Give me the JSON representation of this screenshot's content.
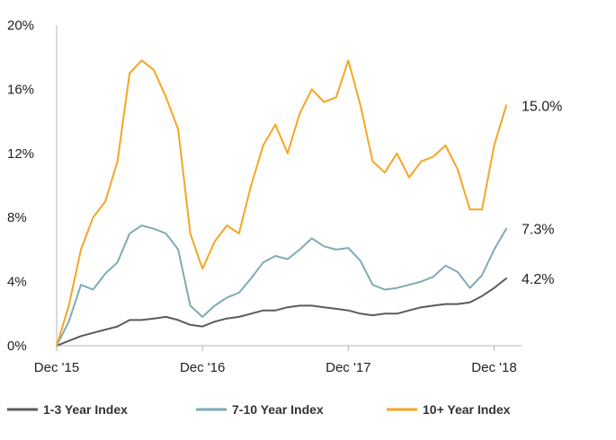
{
  "chart_data": {
    "type": "line",
    "title": "",
    "xlabel": "",
    "ylabel": "",
    "x_ticks": [
      "Dec '15",
      "Dec '16",
      "Dec '17",
      "Dec '18"
    ],
    "y_ticks": [
      "0%",
      "4%",
      "8%",
      "12%",
      "16%",
      "20%"
    ],
    "ylim": [
      0,
      20
    ],
    "x_range": [
      "2015-12",
      "2019-01"
    ],
    "grid": false,
    "legend_position": "bottom",
    "series": [
      {
        "name": "1-3 Year Index",
        "color": "#5a5b5e",
        "end_label": "4.2%",
        "points": [
          [
            "2015-12",
            0.0
          ],
          [
            "2016-01",
            0.3
          ],
          [
            "2016-02",
            0.6
          ],
          [
            "2016-03",
            0.8
          ],
          [
            "2016-04",
            1.0
          ],
          [
            "2016-05",
            1.2
          ],
          [
            "2016-06",
            1.6
          ],
          [
            "2016-07",
            1.6
          ],
          [
            "2016-08",
            1.7
          ],
          [
            "2016-09",
            1.8
          ],
          [
            "2016-10",
            1.6
          ],
          [
            "2016-11",
            1.3
          ],
          [
            "2016-12",
            1.2
          ],
          [
            "2017-01",
            1.5
          ],
          [
            "2017-02",
            1.7
          ],
          [
            "2017-03",
            1.8
          ],
          [
            "2017-04",
            2.0
          ],
          [
            "2017-05",
            2.2
          ],
          [
            "2017-06",
            2.2
          ],
          [
            "2017-07",
            2.4
          ],
          [
            "2017-08",
            2.5
          ],
          [
            "2017-09",
            2.5
          ],
          [
            "2017-10",
            2.4
          ],
          [
            "2017-11",
            2.3
          ],
          [
            "2017-12",
            2.2
          ],
          [
            "2018-01",
            2.0
          ],
          [
            "2018-02",
            1.9
          ],
          [
            "2018-03",
            2.0
          ],
          [
            "2018-04",
            2.0
          ],
          [
            "2018-05",
            2.2
          ],
          [
            "2018-06",
            2.4
          ],
          [
            "2018-07",
            2.5
          ],
          [
            "2018-08",
            2.6
          ],
          [
            "2018-09",
            2.6
          ],
          [
            "2018-10",
            2.7
          ],
          [
            "2018-11",
            3.1
          ],
          [
            "2018-12",
            3.6
          ],
          [
            "2019-01",
            4.2
          ]
        ]
      },
      {
        "name": "7-10 Year Index",
        "color": "#7fabb3",
        "end_label": "7.3%",
        "points": [
          [
            "2015-12",
            0.0
          ],
          [
            "2016-01",
            1.5
          ],
          [
            "2016-02",
            3.8
          ],
          [
            "2016-03",
            3.5
          ],
          [
            "2016-04",
            4.5
          ],
          [
            "2016-05",
            5.2
          ],
          [
            "2016-06",
            7.0
          ],
          [
            "2016-07",
            7.5
          ],
          [
            "2016-08",
            7.3
          ],
          [
            "2016-09",
            7.0
          ],
          [
            "2016-10",
            6.0
          ],
          [
            "2016-11",
            2.5
          ],
          [
            "2016-12",
            1.8
          ],
          [
            "2017-01",
            2.5
          ],
          [
            "2017-02",
            3.0
          ],
          [
            "2017-03",
            3.3
          ],
          [
            "2017-04",
            4.2
          ],
          [
            "2017-05",
            5.2
          ],
          [
            "2017-06",
            5.6
          ],
          [
            "2017-07",
            5.4
          ],
          [
            "2017-08",
            6.0
          ],
          [
            "2017-09",
            6.7
          ],
          [
            "2017-10",
            6.2
          ],
          [
            "2017-11",
            6.0
          ],
          [
            "2017-12",
            6.1
          ],
          [
            "2018-01",
            5.3
          ],
          [
            "2018-02",
            3.8
          ],
          [
            "2018-03",
            3.5
          ],
          [
            "2018-04",
            3.6
          ],
          [
            "2018-05",
            3.8
          ],
          [
            "2018-06",
            4.0
          ],
          [
            "2018-07",
            4.3
          ],
          [
            "2018-08",
            5.0
          ],
          [
            "2018-09",
            4.6
          ],
          [
            "2018-10",
            3.6
          ],
          [
            "2018-11",
            4.4
          ],
          [
            "2018-12",
            6.0
          ],
          [
            "2019-01",
            7.3
          ]
        ]
      },
      {
        "name": "10+ Year Index",
        "color": "#f5a623",
        "end_label": "15.0%",
        "points": [
          [
            "2015-12",
            0.0
          ],
          [
            "2016-01",
            2.5
          ],
          [
            "2016-02",
            6.0
          ],
          [
            "2016-03",
            8.0
          ],
          [
            "2016-04",
            9.0
          ],
          [
            "2016-05",
            11.5
          ],
          [
            "2016-06",
            17.0
          ],
          [
            "2016-07",
            17.8
          ],
          [
            "2016-08",
            17.2
          ],
          [
            "2016-09",
            15.5
          ],
          [
            "2016-10",
            13.5
          ],
          [
            "2016-11",
            7.0
          ],
          [
            "2016-12",
            4.8
          ],
          [
            "2017-01",
            6.5
          ],
          [
            "2017-02",
            7.5
          ],
          [
            "2017-03",
            7.0
          ],
          [
            "2017-04",
            10.0
          ],
          [
            "2017-05",
            12.5
          ],
          [
            "2017-06",
            13.8
          ],
          [
            "2017-07",
            12.0
          ],
          [
            "2017-08",
            14.5
          ],
          [
            "2017-09",
            16.0
          ],
          [
            "2017-10",
            15.2
          ],
          [
            "2017-11",
            15.5
          ],
          [
            "2017-12",
            17.8
          ],
          [
            "2018-01",
            15.0
          ],
          [
            "2018-02",
            11.5
          ],
          [
            "2018-03",
            10.8
          ],
          [
            "2018-04",
            12.0
          ],
          [
            "2018-05",
            10.5
          ],
          [
            "2018-06",
            11.5
          ],
          [
            "2018-07",
            11.8
          ],
          [
            "2018-08",
            12.5
          ],
          [
            "2018-09",
            11.0
          ],
          [
            "2018-10",
            8.5
          ],
          [
            "2018-11",
            8.5
          ],
          [
            "2018-12",
            12.5
          ],
          [
            "2019-01",
            15.0
          ]
        ]
      }
    ]
  }
}
